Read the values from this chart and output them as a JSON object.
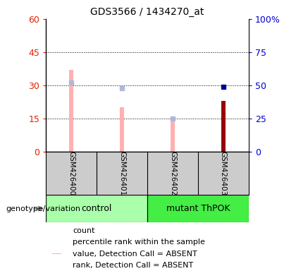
{
  "title": "GDS3566 / 1434270_at",
  "samples": [
    "GSM426400",
    "GSM426401",
    "GSM426402",
    "GSM426403"
  ],
  "left_ylim": [
    0,
    60
  ],
  "right_ylim": [
    0,
    100
  ],
  "left_yticks": [
    0,
    15,
    30,
    45,
    60
  ],
  "right_yticks": [
    0,
    25,
    50,
    75,
    100
  ],
  "left_ylabel_color": "#dd2200",
  "right_ylabel_color": "#0000cc",
  "value_absent": [
    37.0,
    20.0,
    14.0,
    null
  ],
  "rank_absent": [
    52.0,
    48.0,
    25.0,
    null
  ],
  "value_present": [
    null,
    null,
    null,
    23.0
  ],
  "rank_present": [
    null,
    null,
    null,
    49.0
  ],
  "pink_color": "#ffb0b0",
  "lavender_color": "#b0b8d8",
  "dark_red_color": "#990000",
  "blue_color": "#000099",
  "bar_width": 0.08,
  "legend_items": [
    {
      "label": "count",
      "color": "#cc0000"
    },
    {
      "label": "percentile rank within the sample",
      "color": "#0000cc"
    },
    {
      "label": "value, Detection Call = ABSENT",
      "color": "#ffb0b0"
    },
    {
      "label": "rank, Detection Call = ABSENT",
      "color": "#b0b8d8"
    }
  ],
  "genotype_label": "genotype/variation",
  "background_color": "#ffffff",
  "plot_bg_color": "#ffffff",
  "sample_bg_color": "#cccccc",
  "control_color": "#aaffaa",
  "mutant_color": "#44ee44"
}
